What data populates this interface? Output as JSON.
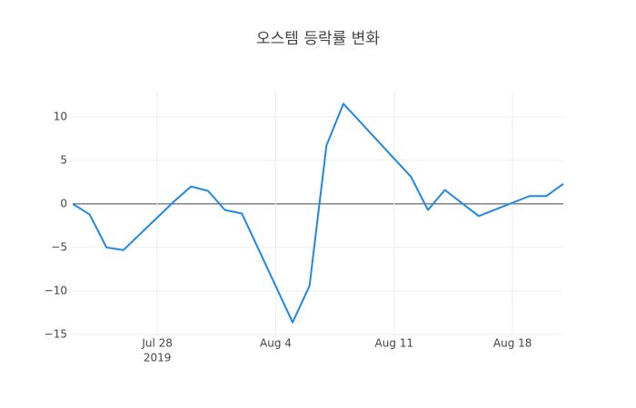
{
  "chart_data": {
    "type": "line",
    "title": "오스템 등락률 변화",
    "x": [
      "2019-07-23",
      "2019-07-24",
      "2019-07-25",
      "2019-07-26",
      "2019-07-29",
      "2019-07-30",
      "2019-07-31",
      "2019-08-01",
      "2019-08-02",
      "2019-08-05",
      "2019-08-06",
      "2019-08-07",
      "2019-08-08",
      "2019-08-12",
      "2019-08-13",
      "2019-08-14",
      "2019-08-16",
      "2019-08-19",
      "2019-08-20",
      "2019-08-21"
    ],
    "series": [
      {
        "name": "등락률",
        "color": "#1f87e6",
        "values": [
          0,
          -1.2,
          -5.0,
          -5.3,
          0.3,
          2.0,
          1.5,
          -0.7,
          -1.1,
          -13.6,
          -9.4,
          6.7,
          11.5,
          3.1,
          -0.7,
          1.6,
          -1.4,
          0.9,
          0.9,
          2.3
        ]
      }
    ],
    "xlim": [
      "2019-07-23",
      "2019-08-21"
    ],
    "xticks": [
      {
        "value": "2019-07-28",
        "label": "Jul 28"
      },
      {
        "value": "2019-08-04",
        "label": "Aug 4"
      },
      {
        "value": "2019-08-11",
        "label": "Aug 11"
      },
      {
        "value": "2019-08-18",
        "label": "Aug 18"
      }
    ],
    "x_year_label": "2019",
    "ylim": [
      -15,
      13
    ],
    "yticks": [
      10,
      5,
      0,
      {
        "value": -5,
        "label": "−5"
      },
      {
        "value": -10,
        "label": "−10"
      },
      {
        "value": -15,
        "label": "−15"
      }
    ],
    "grid": true
  }
}
